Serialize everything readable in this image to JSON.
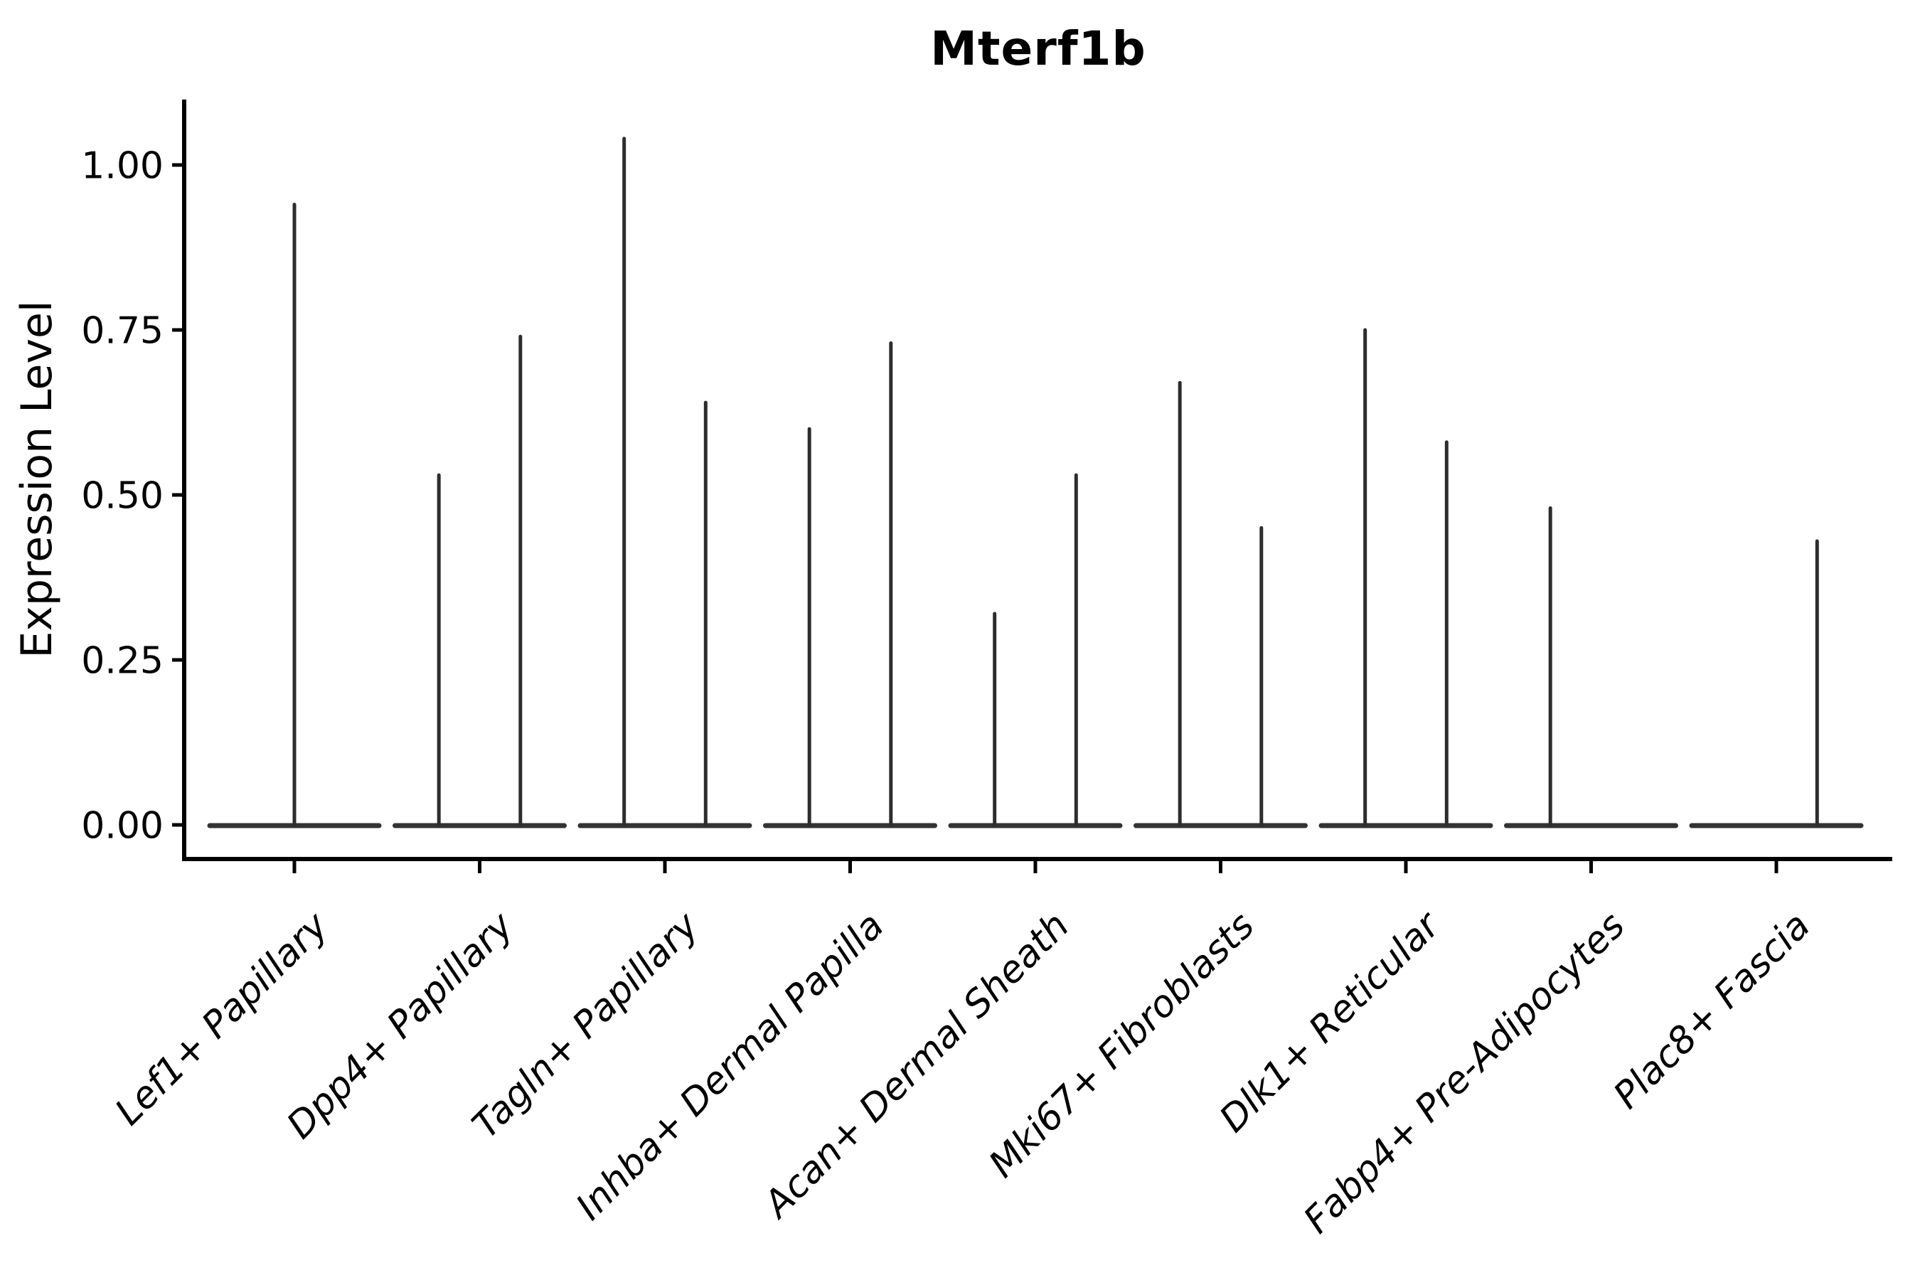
{
  "chart_data": {
    "type": "violin",
    "title": "Mterf1b",
    "ylabel": "Expression Level",
    "xlabel": "",
    "ylim": [
      -0.05,
      1.1
    ],
    "grid": false,
    "legend_position": "none",
    "yticks": [
      {
        "value": 0.0,
        "label": "0.00"
      },
      {
        "value": 0.25,
        "label": "0.25"
      },
      {
        "value": 0.5,
        "label": "0.50"
      },
      {
        "value": 0.75,
        "label": "0.75"
      },
      {
        "value": 1.0,
        "label": "1.00"
      }
    ],
    "violin_offset_units": 0.22,
    "violin_halfwidth_units": 0.46,
    "categories": [
      {
        "label": "Lef1+ Papillary",
        "violins": [
          {
            "position": "center",
            "offset": 0,
            "max": 0.94
          }
        ]
      },
      {
        "label": "Dpp4+ Papillary",
        "violins": [
          {
            "position": "left",
            "offset": -0.22,
            "max": 0.53
          },
          {
            "position": "right",
            "offset": 0.22,
            "max": 0.74
          }
        ]
      },
      {
        "label": "Tagln+ Papillary",
        "violins": [
          {
            "position": "left",
            "offset": -0.22,
            "max": 1.04
          },
          {
            "position": "right",
            "offset": 0.22,
            "max": 0.64
          }
        ]
      },
      {
        "label": "Inhba+ Dermal Papilla",
        "violins": [
          {
            "position": "left",
            "offset": -0.22,
            "max": 0.6
          },
          {
            "position": "right",
            "offset": 0.22,
            "max": 0.73
          }
        ]
      },
      {
        "label": "Acan+ Dermal Sheath",
        "violins": [
          {
            "position": "left",
            "offset": -0.22,
            "max": 0.32
          },
          {
            "position": "right",
            "offset": 0.22,
            "max": 0.53
          }
        ]
      },
      {
        "label": "Mki67+ Fibroblasts",
        "violins": [
          {
            "position": "left",
            "offset": -0.22,
            "max": 0.67
          },
          {
            "position": "right",
            "offset": 0.22,
            "max": 0.45
          }
        ]
      },
      {
        "label": "Dlk1+ Reticular",
        "violins": [
          {
            "position": "left",
            "offset": -0.22,
            "max": 0.75
          },
          {
            "position": "right",
            "offset": 0.22,
            "max": 0.58
          }
        ]
      },
      {
        "label": "Fabp4+ Pre-Adipocytes",
        "violins": [
          {
            "position": "left",
            "offset": -0.22,
            "max": 0.48
          },
          {
            "position": "right",
            "offset": 0.22,
            "max": 0.0
          }
        ]
      },
      {
        "label": "Plac8+ Fascia",
        "violins": [
          {
            "position": "left",
            "offset": -0.22,
            "max": 0.0
          },
          {
            "position": "right",
            "offset": 0.22,
            "max": 0.43
          }
        ]
      }
    ],
    "colors": {
      "violin_stroke": "#2d2d2d",
      "violin_base": "#333333",
      "axis": "#000000",
      "text": "#000000",
      "background": "#ffffff"
    }
  }
}
